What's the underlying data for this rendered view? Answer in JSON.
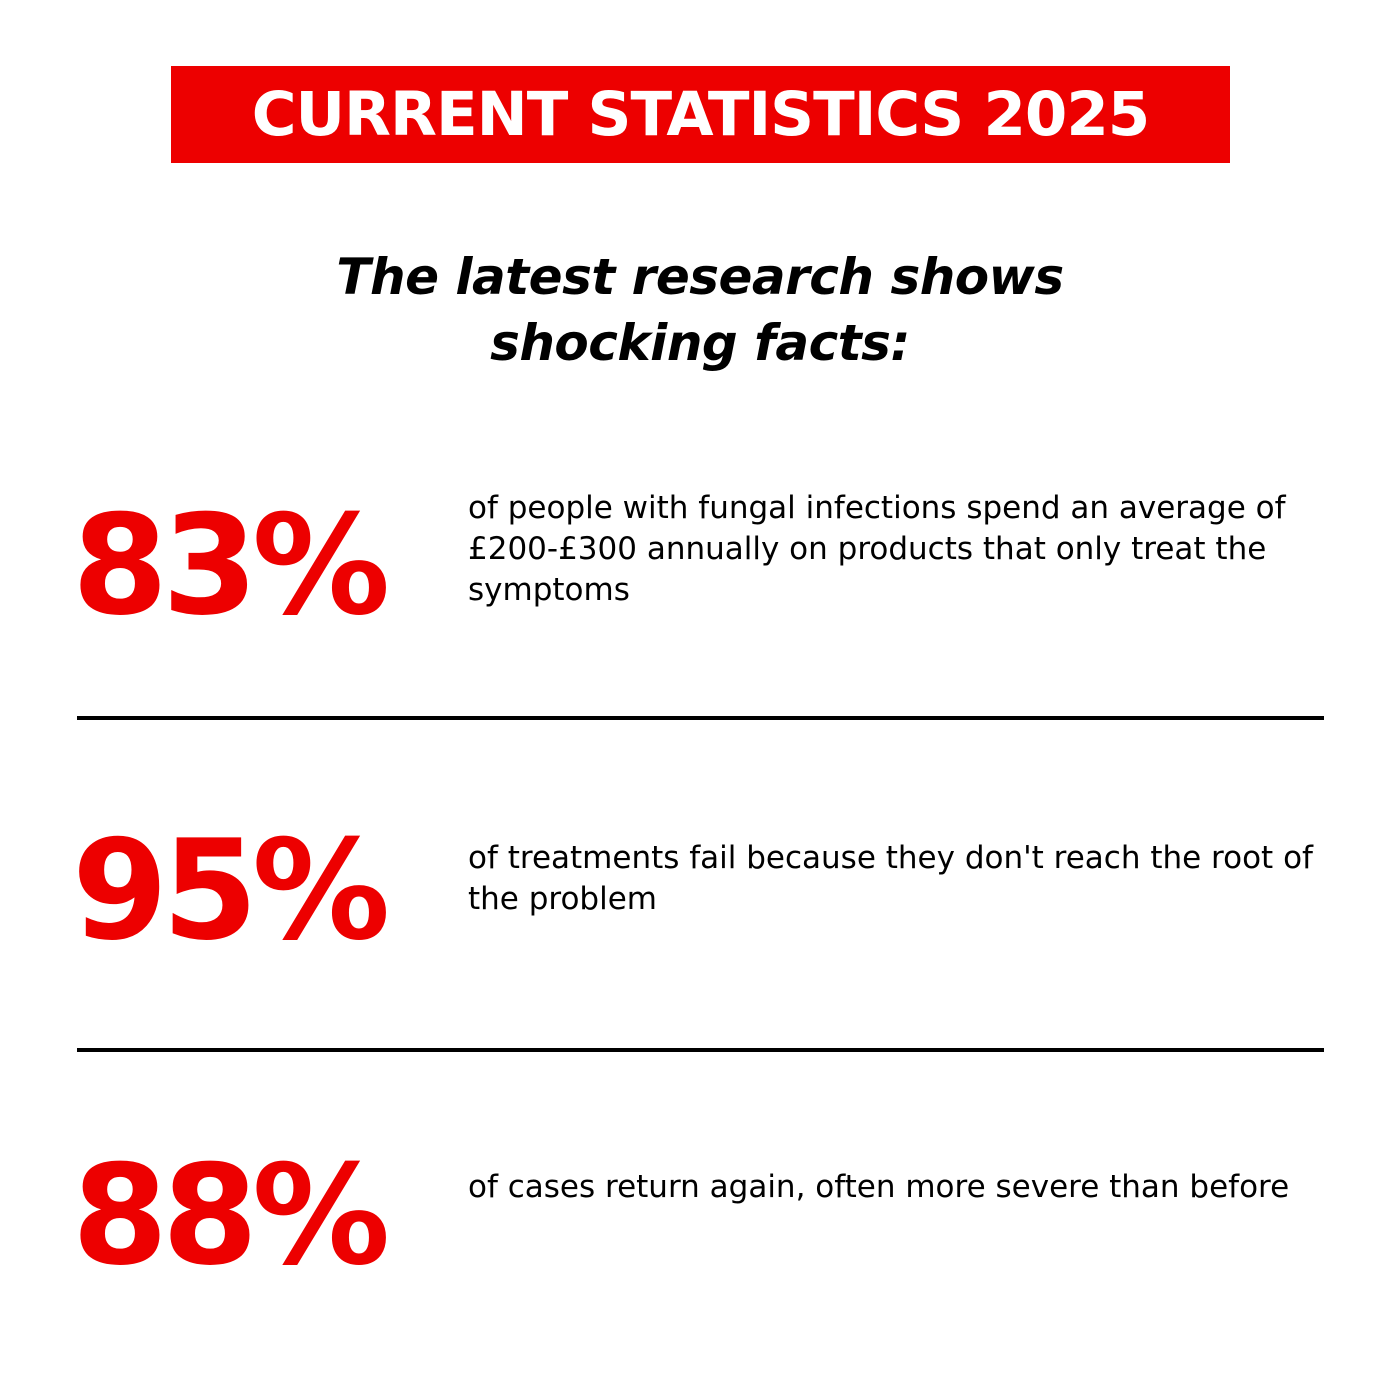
{
  "header": {
    "title": "CURRENT STATISTICS 2025"
  },
  "subtitle": {
    "line1": "The latest research shows",
    "line2": "shocking facts:"
  },
  "stats": [
    {
      "value": "83%",
      "description": "of people with fungal infections spend an average of £200-£300 annually on products that only treat the symptoms"
    },
    {
      "value": "95%",
      "description": "of treatments fail because they don't reach the root of the problem"
    },
    {
      "value": "88%",
      "description": "of cases return again, often more severe than before"
    }
  ],
  "colors": {
    "accent": "#ed0000",
    "text": "#000000",
    "background": "#ffffff"
  }
}
